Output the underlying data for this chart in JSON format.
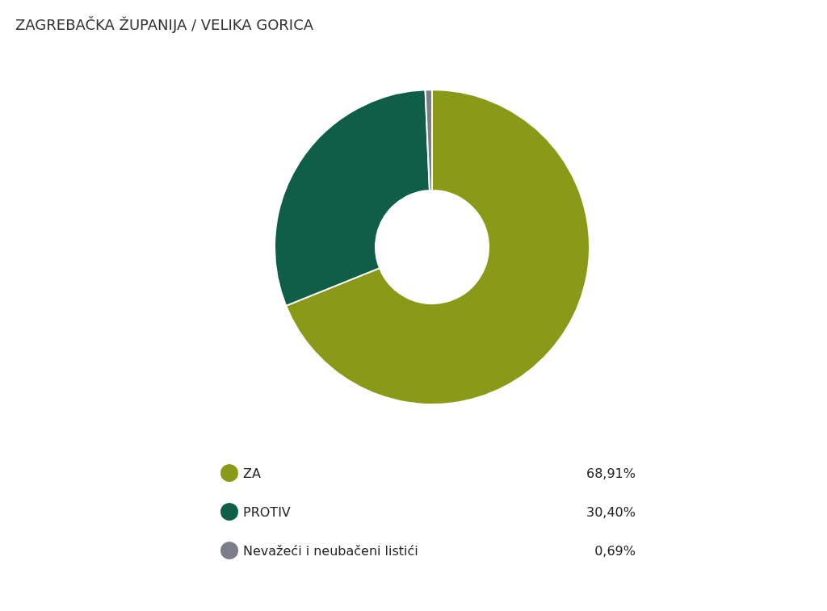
{
  "chart_data": {
    "type": "donut",
    "title": "ZAGREBAČKA ŽUPANIJA / VELIKA GORICA",
    "categories": [
      "ZA",
      "PROTIV",
      "Nevažeći i neubačeni listići"
    ],
    "values": [
      68.91,
      30.4,
      0.69
    ],
    "colors": [
      "#8a9a18",
      "#0e5e48",
      "#7b7e8a"
    ],
    "value_labels": [
      "68,91%",
      "30,40%",
      "0,69%"
    ],
    "legend": "bottom"
  }
}
